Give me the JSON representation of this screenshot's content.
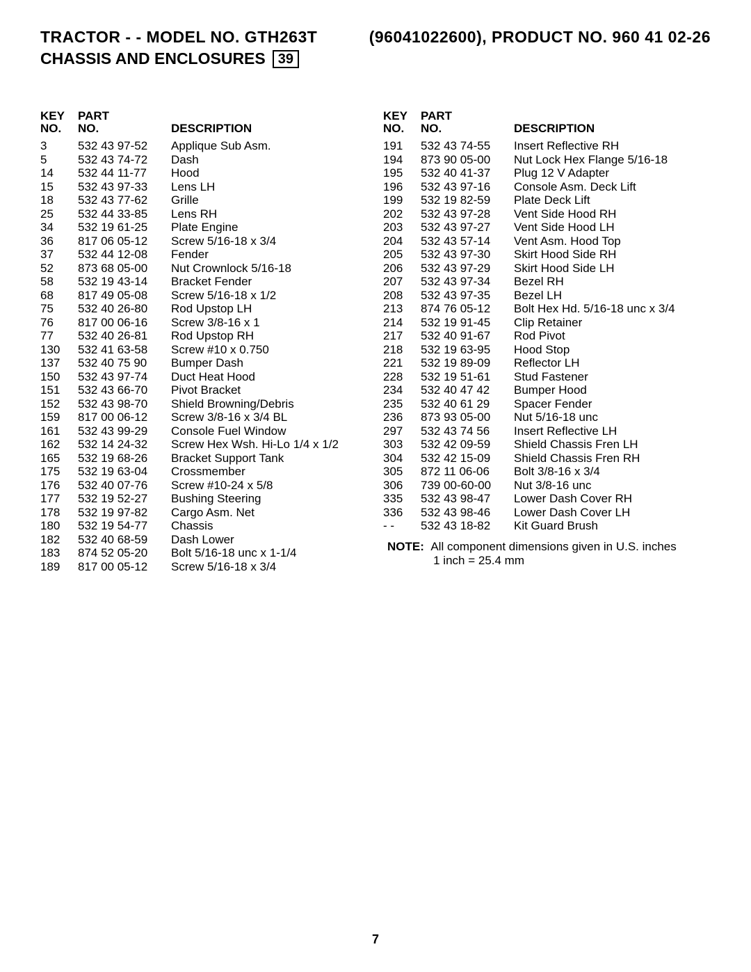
{
  "header": {
    "title_left": "TRACTOR - - MODEL NO. GTH263T",
    "title_right": "(96041022600), PRODUCT NO. 960 41 02-26",
    "subtitle": "CHASSIS AND ENCLOSURES",
    "box_number": "39"
  },
  "table_headers": {
    "key_no_line1": "KEY",
    "key_no_line2": "NO.",
    "part_no_line1": "PART",
    "part_no_line2": "NO.",
    "description": "DESCRIPTION"
  },
  "left_rows": [
    {
      "key": "3",
      "part": "532 43 97-52",
      "desc": "Applique Sub Asm."
    },
    {
      "key": "5",
      "part": "532 43 74-72",
      "desc": "Dash"
    },
    {
      "key": "14",
      "part": "532 44 11-77",
      "desc": "Hood"
    },
    {
      "key": "15",
      "part": "532 43 97-33",
      "desc": "Lens LH"
    },
    {
      "key": "18",
      "part": "532 43 77-62",
      "desc": "Grille"
    },
    {
      "key": "25",
      "part": "532 44 33-85",
      "desc": "Lens RH"
    },
    {
      "key": "34",
      "part": "532 19 61-25",
      "desc": "Plate Engine"
    },
    {
      "key": "36",
      "part": "817 06 05-12",
      "desc": "Screw 5/16-18 x 3/4"
    },
    {
      "key": "37",
      "part": "532 44 12-08",
      "desc": "Fender"
    },
    {
      "key": "52",
      "part": "873 68 05-00",
      "desc": "Nut Crownlock 5/16-18"
    },
    {
      "key": "58",
      "part": "532 19 43-14",
      "desc": "Bracket Fender"
    },
    {
      "key": "68",
      "part": "817 49 05-08",
      "desc": "Screw 5/16-18 x 1/2"
    },
    {
      "key": "75",
      "part": "532 40 26-80",
      "desc": "Rod Upstop LH"
    },
    {
      "key": "76",
      "part": "817 00 06-16",
      "desc": "Screw 3/8-16 x 1"
    },
    {
      "key": "77",
      "part": "532 40 26-81",
      "desc": "Rod Upstop RH"
    },
    {
      "key": "130",
      "part": "532 41 63-58",
      "desc": "Screw #10 x 0.750"
    },
    {
      "key": "137",
      "part": "532 40 75 90",
      "desc": "Bumper Dash"
    },
    {
      "key": "150",
      "part": "532 43 97-74",
      "desc": "Duct Heat Hood"
    },
    {
      "key": "151",
      "part": "532 43 66-70",
      "desc": "Pivot Bracket"
    },
    {
      "key": "152",
      "part": "532 43 98-70",
      "desc": "Shield Browning/Debris"
    },
    {
      "key": "159",
      "part": "817 00 06-12",
      "desc": "Screw 3/8-16 x 3/4 BL"
    },
    {
      "key": "161",
      "part": "532 43 99-29",
      "desc": "Console Fuel Window"
    },
    {
      "key": "162",
      "part": "532 14 24-32",
      "desc": "Screw Hex Wsh. Hi-Lo 1/4 x 1/2"
    },
    {
      "key": "165",
      "part": "532 19 68-26",
      "desc": "Bracket Support Tank"
    },
    {
      "key": "175",
      "part": "532 19 63-04",
      "desc": "Crossmember"
    },
    {
      "key": "176",
      "part": "532 40 07-76",
      "desc": "Screw #10-24 x 5/8"
    },
    {
      "key": "177",
      "part": "532 19 52-27",
      "desc": "Bushing Steering"
    },
    {
      "key": "178",
      "part": "532 19 97-82",
      "desc": "Cargo Asm. Net"
    },
    {
      "key": "180",
      "part": "532 19 54-77",
      "desc": "Chassis"
    },
    {
      "key": "182",
      "part": "532 40 68-59",
      "desc": "Dash Lower"
    },
    {
      "key": "183",
      "part": "874 52 05-20",
      "desc": "Bolt 5/16-18 unc x 1-1/4"
    },
    {
      "key": "189",
      "part": "817 00 05-12",
      "desc": "Screw 5/16-18 x 3/4"
    }
  ],
  "right_rows": [
    {
      "key": "191",
      "part": "532 43 74-55",
      "desc": "Insert Reflective RH"
    },
    {
      "key": "194",
      "part": "873 90 05-00",
      "desc": "Nut Lock Hex Flange 5/16-18"
    },
    {
      "key": "195",
      "part": "532 40 41-37",
      "desc": "Plug 12 V Adapter"
    },
    {
      "key": "196",
      "part": "532 43 97-16",
      "desc": "Console Asm. Deck Lift"
    },
    {
      "key": "199",
      "part": "532 19 82-59",
      "desc": "Plate Deck Lift"
    },
    {
      "key": "202",
      "part": "532 43 97-28",
      "desc": "Vent Side Hood RH"
    },
    {
      "key": "203",
      "part": "532 43 97-27",
      "desc": "Vent Side Hood LH"
    },
    {
      "key": "204",
      "part": "532 43 57-14",
      "desc": "Vent Asm. Hood Top"
    },
    {
      "key": "205",
      "part": "532 43 97-30",
      "desc": "Skirt Hood Side RH"
    },
    {
      "key": "206",
      "part": "532 43 97-29",
      "desc": "Skirt Hood Side LH"
    },
    {
      "key": "207",
      "part": "532 43 97-34",
      "desc": "Bezel RH"
    },
    {
      "key": "208",
      "part": "532 43 97-35",
      "desc": "Bezel LH"
    },
    {
      "key": "213",
      "part": "874 76 05-12",
      "desc": "Bolt Hex Hd. 5/16-18 unc x 3/4"
    },
    {
      "key": "214",
      "part": "532 19 91-45",
      "desc": "Clip Retainer"
    },
    {
      "key": "217",
      "part": "532 40 91-67",
      "desc": "Rod Pivot"
    },
    {
      "key": "218",
      "part": "532 19 63-95",
      "desc": "Hood Stop"
    },
    {
      "key": "221",
      "part": "532 19 89-09",
      "desc": "Reflector LH"
    },
    {
      "key": "228",
      "part": "532 19 51-61",
      "desc": "Stud Fastener"
    },
    {
      "key": "234",
      "part": "532 40 47 42",
      "desc": "Bumper Hood"
    },
    {
      "key": "235",
      "part": "532 40 61 29",
      "desc": "Spacer Fender"
    },
    {
      "key": "236",
      "part": "873 93 05-00",
      "desc": "Nut 5/16-18 unc"
    },
    {
      "key": "297",
      "part": "532 43 74 56",
      "desc": "Insert Reflective LH"
    },
    {
      "key": "303",
      "part": "532 42 09-59",
      "desc": "Shield Chassis Fren LH"
    },
    {
      "key": "304",
      "part": "532 42 15-09",
      "desc": "Shield Chassis Fren RH"
    },
    {
      "key": "305",
      "part": "872 11 06-06",
      "desc": "Bolt 3/8-16 x 3/4"
    },
    {
      "key": "306",
      "part": "739 00-60-00",
      "desc": "Nut 3/8-16 unc"
    },
    {
      "key": "335",
      "part": "532 43 98-47",
      "desc": "Lower Dash Cover RH"
    },
    {
      "key": "336",
      "part": "532 43 98-46",
      "desc": "Lower Dash Cover LH"
    },
    {
      "key": "- -",
      "part": "532 43 18-82",
      "desc": "Kit Guard Brush"
    }
  ],
  "note": {
    "label": "NOTE:",
    "line1": "All component dimensions given in U.S. inches",
    "line2": "1 inch = 25.4 mm"
  },
  "page_number": "7"
}
